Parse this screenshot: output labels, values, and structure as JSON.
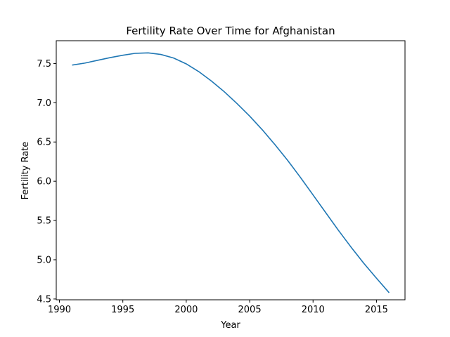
{
  "chart_data": {
    "type": "line",
    "title": "Fertility Rate Over Time for Afghanistan",
    "xlabel": "Year",
    "ylabel": "Fertility Rate",
    "xlim": [
      1989.75,
      2017.25
    ],
    "ylim": [
      4.49,
      7.79
    ],
    "xticks": [
      1990,
      1995,
      2000,
      2005,
      2010,
      2015
    ],
    "yticks": [
      4.5,
      5.0,
      5.5,
      6.0,
      6.5,
      7.0,
      7.5
    ],
    "xtick_labels": [
      "1990",
      "1995",
      "2000",
      "2005",
      "2010",
      "2015"
    ],
    "ytick_labels": [
      "4.5",
      "5.0",
      "5.5",
      "6.0",
      "6.5",
      "7.0",
      "7.5"
    ],
    "grid": false,
    "color": "#1f77b4",
    "series": [
      {
        "x": [
          1991,
          1992,
          1993,
          1994,
          1995,
          1996,
          1997,
          1998,
          1999,
          2000,
          2001,
          2002,
          2003,
          2004,
          2005,
          2006,
          2007,
          2008,
          2009,
          2010,
          2011,
          2012,
          2013,
          2014,
          2015,
          2016
        ],
        "values": [
          7.48,
          7.505,
          7.54,
          7.575,
          7.605,
          7.63,
          7.635,
          7.615,
          7.57,
          7.495,
          7.395,
          7.275,
          7.14,
          6.99,
          6.83,
          6.655,
          6.465,
          6.265,
          6.05,
          5.825,
          5.6,
          5.375,
          5.16,
          4.955,
          4.765,
          4.58
        ]
      }
    ]
  }
}
